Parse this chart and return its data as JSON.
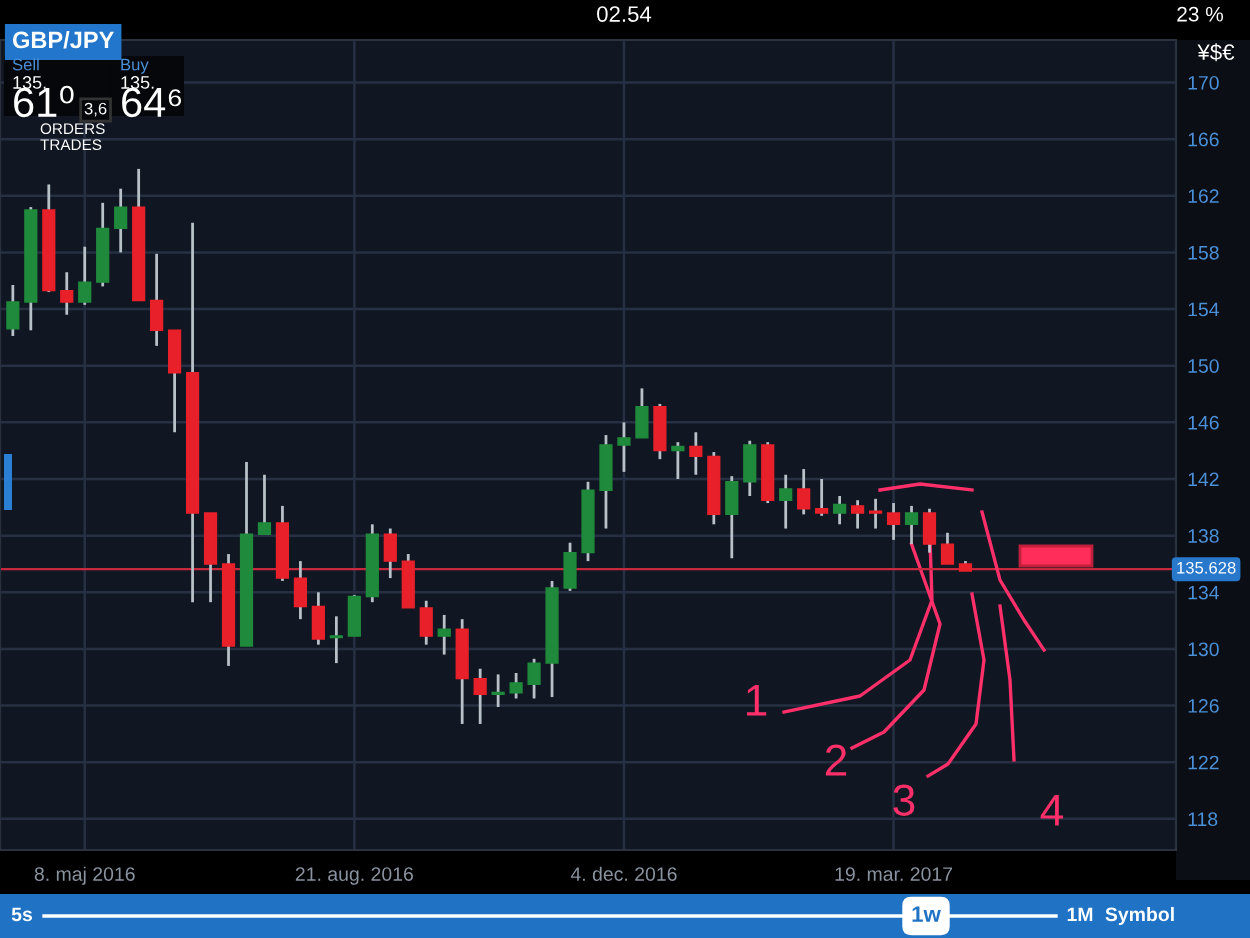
{
  "chart_data": {
    "type": "candlestick",
    "title": "GBP/JPY",
    "x": [
      "2016-04-10",
      "2016-04-17",
      "2016-04-24",
      "2016-05-01",
      "2016-05-08",
      "2016-05-15",
      "2016-05-22",
      "2016-05-29",
      "2016-06-05",
      "2016-06-12",
      "2016-06-19",
      "2016-06-26",
      "2016-07-03",
      "2016-07-10",
      "2016-07-17",
      "2016-07-24",
      "2016-07-31",
      "2016-08-07",
      "2016-08-14",
      "2016-08-21",
      "2016-08-28",
      "2016-09-04",
      "2016-09-11",
      "2016-09-18",
      "2016-09-25",
      "2016-10-02",
      "2016-10-09",
      "2016-10-16",
      "2016-10-23",
      "2016-10-30",
      "2016-11-06",
      "2016-11-13",
      "2016-11-20",
      "2016-11-27",
      "2016-12-04",
      "2016-12-11",
      "2016-12-18",
      "2016-12-25",
      "2017-01-01",
      "2017-01-08",
      "2017-01-15",
      "2017-01-22",
      "2017-01-29",
      "2017-02-05",
      "2017-02-12",
      "2017-02-19",
      "2017-02-26",
      "2017-03-05",
      "2017-03-12",
      "2017-03-19",
      "2017-03-26",
      "2017-04-02",
      "2017-04-09",
      "2017-04-16"
    ],
    "ohlc": [
      [
        152.6,
        155.7,
        152.1,
        154.5
      ],
      [
        154.5,
        161.2,
        152.5,
        161.0
      ],
      [
        161.0,
        162.8,
        155.2,
        155.3
      ],
      [
        155.3,
        156.6,
        153.6,
        154.5
      ],
      [
        154.5,
        158.4,
        154.3,
        155.9
      ],
      [
        155.9,
        161.5,
        155.6,
        159.7
      ],
      [
        159.7,
        162.5,
        158.0,
        161.2
      ],
      [
        161.2,
        163.9,
        154.6,
        154.6
      ],
      [
        154.6,
        157.9,
        151.4,
        152.5
      ],
      [
        152.5,
        152.5,
        145.3,
        149.5
      ],
      [
        149.5,
        160.1,
        133.3,
        139.6
      ],
      [
        139.6,
        139.6,
        133.3,
        136.0
      ],
      [
        136.0,
        136.7,
        128.8,
        130.2
      ],
      [
        130.2,
        143.2,
        130.2,
        138.1
      ],
      [
        138.1,
        142.3,
        138.1,
        138.9
      ],
      [
        138.9,
        140.1,
        134.8,
        135.0
      ],
      [
        135.0,
        136.2,
        132.1,
        133.0
      ],
      [
        133.0,
        134.0,
        130.3,
        130.7
      ],
      [
        130.8,
        132.3,
        129.0,
        130.9
      ],
      [
        130.9,
        133.8,
        130.9,
        133.7
      ],
      [
        133.7,
        138.8,
        133.3,
        138.1
      ],
      [
        138.1,
        138.5,
        135.0,
        136.2
      ],
      [
        136.2,
        136.7,
        132.9,
        132.9
      ],
      [
        132.9,
        133.4,
        130.3,
        130.9
      ],
      [
        130.9,
        132.4,
        129.6,
        131.4
      ],
      [
        131.4,
        132.1,
        124.7,
        127.9
      ],
      [
        127.9,
        128.6,
        124.7,
        126.8
      ],
      [
        126.8,
        128.2,
        125.9,
        126.9
      ],
      [
        126.9,
        128.3,
        126.5,
        127.6
      ],
      [
        127.5,
        129.3,
        126.5,
        129.0
      ],
      [
        129.0,
        134.8,
        126.6,
        134.3
      ],
      [
        134.3,
        137.5,
        134.1,
        136.8
      ],
      [
        136.8,
        141.8,
        136.2,
        141.2
      ],
      [
        141.2,
        145.1,
        138.5,
        144.4
      ],
      [
        144.4,
        146.0,
        142.5,
        144.9
      ],
      [
        144.9,
        148.4,
        144.9,
        147.1
      ],
      [
        147.1,
        147.3,
        143.4,
        144.0
      ],
      [
        144.0,
        144.6,
        142.0,
        144.3
      ],
      [
        144.3,
        145.3,
        142.3,
        143.6
      ],
      [
        143.6,
        143.9,
        138.8,
        139.5
      ],
      [
        139.5,
        142.2,
        136.4,
        141.8
      ],
      [
        141.8,
        144.7,
        140.8,
        144.4
      ],
      [
        144.4,
        144.6,
        140.3,
        140.5
      ],
      [
        140.5,
        142.3,
        138.5,
        141.3
      ],
      [
        141.3,
        142.7,
        139.5,
        139.9
      ],
      [
        139.9,
        142.0,
        139.4,
        139.6
      ],
      [
        139.6,
        140.8,
        138.8,
        140.2
      ],
      [
        140.1,
        140.5,
        138.5,
        139.6
      ],
      [
        139.7,
        140.6,
        138.5,
        139.6
      ],
      [
        139.6,
        140.3,
        137.7,
        138.8
      ],
      [
        138.8,
        140.1,
        137.4,
        139.6
      ],
      [
        139.6,
        139.9,
        136.8,
        137.4
      ],
      [
        137.4,
        138.2,
        136.0,
        136.0
      ],
      [
        136.0,
        136.2,
        135.5,
        135.5
      ]
    ],
    "colors": [
      "#1f8a3b",
      "#1f8a3b",
      "#e8202a",
      "#e8202a",
      "#1f8a3b",
      "#1f8a3b",
      "#1f8a3b",
      "#e8202a",
      "#e8202a",
      "#e8202a",
      "#e8202a",
      "#e8202a",
      "#e8202a",
      "#1f8a3b",
      "#1f8a3b",
      "#e8202a",
      "#e8202a",
      "#e8202a",
      "#1f8a3b",
      "#1f8a3b",
      "#1f8a3b",
      "#e8202a",
      "#e8202a",
      "#e8202a",
      "#1f8a3b",
      "#e8202a",
      "#e8202a",
      "#1f8a3b",
      "#1f8a3b",
      "#1f8a3b",
      "#1f8a3b",
      "#1f8a3b",
      "#1f8a3b",
      "#1f8a3b",
      "#1f8a3b",
      "#1f8a3b",
      "#e8202a",
      "#1f8a3b",
      "#e8202a",
      "#e8202a",
      "#1f8a3b",
      "#1f8a3b",
      "#e8202a",
      "#1f8a3b",
      "#e8202a",
      "#e8202a",
      "#1f8a3b",
      "#e8202a",
      "#e8202a",
      "#e8202a",
      "#1f8a3b",
      "#e8202a",
      "#e8202a",
      "#e8202a"
    ],
    "xlim": [
      "2016-04-05",
      "2017-07-07"
    ],
    "xticks": [
      {
        "value": "2016-05-08",
        "label": "8. maj 2016"
      },
      {
        "value": "2016-08-21",
        "label": "21. aug. 2016"
      },
      {
        "value": "2016-12-04",
        "label": "4. dec. 2016"
      },
      {
        "value": "2017-03-19",
        "label": "19. mar. 2017"
      }
    ],
    "ylim": [
      115.8,
      173.0
    ],
    "yticks": [
      118,
      122,
      126,
      130,
      134,
      138,
      142,
      146,
      150,
      154,
      158,
      162,
      166,
      170
    ],
    "grid": true,
    "ref_lines": [
      {
        "axis": "y",
        "value": 135.628,
        "label": "135.628",
        "color": "#c8283c"
      }
    ],
    "annotations": [
      "02.54",
      "23 %",
      "Sell",
      "135.",
      "61⁰",
      "3,6",
      "Buy",
      "135.",
      "64⁶",
      "ORDERS",
      "TRADES",
      "¥$€",
      "5s",
      "1w",
      "1M",
      "Symbol",
      {
        "text": "1",
        "x": "2017-04-02",
        "y": 138.8
      },
      {
        "text": "2",
        "x": "2017-03-26",
        "y": 137.4
      },
      "3",
      "4"
    ]
  }
}
